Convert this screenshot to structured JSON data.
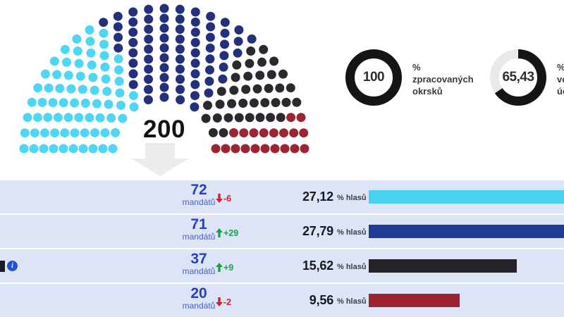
{
  "parliament": {
    "center_label": "200",
    "total_seats": 200,
    "row_count": 10
  },
  "labels": {
    "mandate_word": "mandátů",
    "pct_word": "% hlasů"
  },
  "parties": [
    {
      "seats": 72,
      "seats_label": "72",
      "change_label": "-6",
      "direction": "down",
      "pct_value": 27.12,
      "pct_label": "27,12",
      "dot_color": "#4fd6f4",
      "bar_color": "#47d2f2"
    },
    {
      "seats": 71,
      "seats_label": "71",
      "change_label": "+29",
      "direction": "up",
      "pct_value": 27.79,
      "pct_label": "27,79",
      "dot_color": "#25307d",
      "bar_color": "#1f3a95"
    },
    {
      "seats": 37,
      "seats_label": "37",
      "change_label": "+9",
      "direction": "up",
      "pct_value": 15.62,
      "pct_label": "15,62",
      "dot_color": "#2b2930",
      "bar_color": "#25232a"
    },
    {
      "seats": 20,
      "seats_label": "20",
      "change_label": "-2",
      "direction": "down",
      "pct_value": 9.56,
      "pct_label": "9,56",
      "dot_color": "#9c2533",
      "bar_color": "#9e2130"
    }
  ],
  "gauges": [
    {
      "value": 100,
      "value_label": "100",
      "lines": [
        "%",
        "zpracovaných",
        "okrsků"
      ]
    },
    {
      "value": 65.43,
      "value_label": "65,43",
      "lines": [
        "%",
        "volební",
        "účast"
      ]
    }
  ],
  "info_icon": {
    "glyph": "i"
  },
  "colors": {
    "row_bg": "#dce4f6",
    "gauge_fill": "#151515",
    "gauge_track": "#e9e9eb",
    "mandate_blue": "#2a3fc3",
    "change_up_green": "#18a34a",
    "change_down_red": "#cd2134",
    "big_arrow_gray": "#ececec"
  },
  "chart_data": [
    {
      "type": "parliament",
      "total_seats": 200,
      "center_label": "200",
      "series": [
        {
          "name": "light-blue",
          "seats": 72,
          "color": "#4fd6f4"
        },
        {
          "name": "dark-blue",
          "seats": 71,
          "color": "#25307d"
        },
        {
          "name": "black",
          "seats": 37,
          "color": "#2b2930"
        },
        {
          "name": "dark-red",
          "seats": 20,
          "color": "#9c2533"
        }
      ]
    },
    {
      "type": "bar",
      "orientation": "horizontal",
      "categories": [
        "72 mandátů (-6)",
        "71 mandátů (+29)",
        "37 mandátů (+9)",
        "20 mandátů (-2)"
      ],
      "values": [
        27.12,
        27.79,
        15.62,
        9.56
      ],
      "unit": "% hlasů",
      "colors": [
        "#47d2f2",
        "#1f3a95",
        "#25232a",
        "#9e2130"
      ],
      "xlim": [
        0,
        20.6
      ],
      "note": "bars for 27.12 and 27.79 are clipped by the right viewport edge"
    },
    {
      "type": "donut",
      "value": 100,
      "label": "% zpracovaných okrsků"
    },
    {
      "type": "donut",
      "value": 65.43,
      "label": "% volební účast (clipped at right edge)"
    }
  ]
}
